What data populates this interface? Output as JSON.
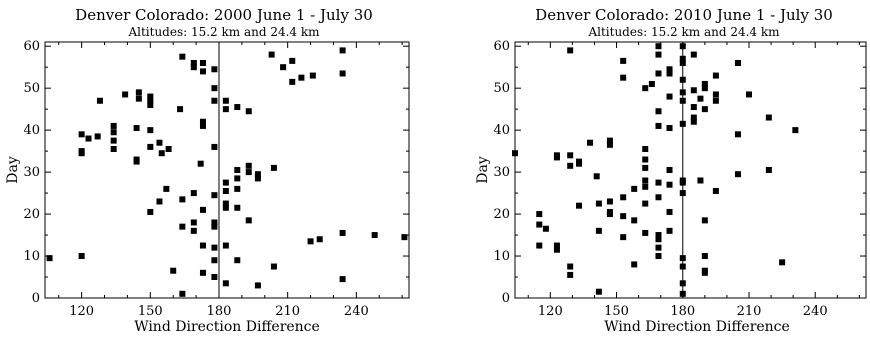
{
  "chart_data": [
    {
      "type": "scatter",
      "title": "Denver Colorado: 2000 June 1 - July 30",
      "subtitle": "Altitudes: 15.2 km and 24.4 km",
      "xlabel": "Wind Direction Difference",
      "ylabel": "Day",
      "xlim": [
        104,
        263
      ],
      "ylim": [
        0,
        61
      ],
      "xticks": [
        120,
        150,
        180,
        210,
        240
      ],
      "yticks": [
        0,
        10,
        20,
        30,
        40,
        50,
        60
      ],
      "reference_line_x": 180,
      "marker": "square",
      "marker_color": "#000000",
      "points": [
        [
          106,
          9.5
        ],
        [
          120,
          10
        ],
        [
          120,
          34.5
        ],
        [
          120,
          35
        ],
        [
          120,
          39
        ],
        [
          123,
          38
        ],
        [
          127,
          38.5
        ],
        [
          128,
          47
        ],
        [
          134,
          35.5
        ],
        [
          134,
          37.5
        ],
        [
          134,
          39.5
        ],
        [
          134,
          41
        ],
        [
          139,
          48.5
        ],
        [
          144,
          32.5
        ],
        [
          144,
          33
        ],
        [
          144,
          40.5
        ],
        [
          145,
          49
        ],
        [
          145,
          47.5
        ],
        [
          150,
          20.5
        ],
        [
          150,
          36
        ],
        [
          150,
          40
        ],
        [
          150,
          46
        ],
        [
          150,
          47
        ],
        [
          150,
          48
        ],
        [
          154,
          23
        ],
        [
          154,
          37
        ],
        [
          155,
          34.5
        ],
        [
          157,
          26
        ],
        [
          158,
          35.5
        ],
        [
          163,
          45
        ],
        [
          164,
          57.5
        ],
        [
          164,
          23.5
        ],
        [
          164,
          17
        ],
        [
          164,
          1
        ],
        [
          160,
          6.5
        ],
        [
          169,
          56
        ],
        [
          169,
          55
        ],
        [
          169,
          25
        ],
        [
          169,
          18
        ],
        [
          169,
          16
        ],
        [
          173,
          56
        ],
        [
          173,
          54
        ],
        [
          173,
          42
        ],
        [
          173,
          41
        ],
        [
          172,
          32
        ],
        [
          173,
          21
        ],
        [
          173,
          12.5
        ],
        [
          173,
          6
        ],
        [
          178,
          54.5
        ],
        [
          178,
          50
        ],
        [
          178,
          47
        ],
        [
          178,
          36
        ],
        [
          178,
          24.5
        ],
        [
          178,
          18
        ],
        [
          178,
          17
        ],
        [
          178,
          12
        ],
        [
          178,
          9
        ],
        [
          178,
          5
        ],
        [
          183,
          47
        ],
        [
          183,
          45
        ],
        [
          183,
          27.5
        ],
        [
          183,
          25.5
        ],
        [
          183,
          22.5
        ],
        [
          183,
          21.5
        ],
        [
          183,
          12.5
        ],
        [
          183,
          3.5
        ],
        [
          188,
          45.5
        ],
        [
          188,
          30.5
        ],
        [
          188,
          28.5
        ],
        [
          188,
          26
        ],
        [
          188,
          21.5
        ],
        [
          188,
          9
        ],
        [
          193,
          44.5
        ],
        [
          193,
          31.5
        ],
        [
          193,
          30
        ],
        [
          193,
          18.5
        ],
        [
          197,
          29.5
        ],
        [
          197,
          28.5
        ],
        [
          197,
          3
        ],
        [
          203,
          58
        ],
        [
          204,
          31
        ],
        [
          204,
          7.5
        ],
        [
          208,
          55
        ],
        [
          212,
          56.5
        ],
        [
          212,
          51.5
        ],
        [
          216,
          52.5
        ],
        [
          220,
          13.5
        ],
        [
          221,
          53
        ],
        [
          224,
          14
        ],
        [
          234,
          59
        ],
        [
          234,
          53.5
        ],
        [
          234,
          15.5
        ],
        [
          234,
          4.5
        ],
        [
          248,
          15
        ],
        [
          261,
          14.5
        ]
      ]
    },
    {
      "type": "scatter",
      "title": "Denver Colorado: 2010 June 1 - July 30",
      "subtitle": "Altitudes: 15.2 km and 24.4 km",
      "xlabel": "Wind Direction Difference",
      "ylabel": "Day",
      "xlim": [
        104,
        263
      ],
      "ylim": [
        0,
        61
      ],
      "xticks": [
        120,
        150,
        180,
        210,
        240
      ],
      "yticks": [
        0,
        10,
        20,
        30,
        40,
        50,
        60
      ],
      "reference_line_x": 180,
      "marker": "square",
      "marker_color": "#000000",
      "points": [
        [
          104,
          34.5
        ],
        [
          115,
          20
        ],
        [
          115,
          17.5
        ],
        [
          115,
          12.5
        ],
        [
          118,
          16.5
        ],
        [
          123,
          34
        ],
        [
          123,
          33.5
        ],
        [
          123,
          12.5
        ],
        [
          123,
          11.5
        ],
        [
          129,
          59
        ],
        [
          129,
          34
        ],
        [
          129,
          31.5
        ],
        [
          129,
          7.5
        ],
        [
          129,
          5.5
        ],
        [
          133,
          32.5
        ],
        [
          133,
          32
        ],
        [
          133,
          22
        ],
        [
          138,
          37
        ],
        [
          141,
          29
        ],
        [
          142,
          22.5
        ],
        [
          142,
          16
        ],
        [
          142,
          1.5
        ],
        [
          147,
          37.5
        ],
        [
          147,
          36.5
        ],
        [
          147,
          23
        ],
        [
          147,
          20.5
        ],
        [
          147,
          20
        ],
        [
          153,
          56.5
        ],
        [
          153,
          52.5
        ],
        [
          153,
          24
        ],
        [
          153,
          19.5
        ],
        [
          153,
          14.5
        ],
        [
          158,
          26
        ],
        [
          158,
          18.5
        ],
        [
          158,
          8
        ],
        [
          163,
          50
        ],
        [
          163,
          35.5
        ],
        [
          163,
          33
        ],
        [
          163,
          31
        ],
        [
          163,
          28
        ],
        [
          163,
          26.5
        ],
        [
          163,
          22.5
        ],
        [
          163,
          15.5
        ],
        [
          166,
          51
        ],
        [
          169,
          60
        ],
        [
          169,
          58
        ],
        [
          169,
          53.5
        ],
        [
          169,
          44.5
        ],
        [
          169,
          41
        ],
        [
          169,
          27.5
        ],
        [
          169,
          24
        ],
        [
          169,
          15
        ],
        [
          169,
          14
        ],
        [
          169,
          12
        ],
        [
          169,
          10
        ],
        [
          174,
          54.5
        ],
        [
          174,
          53.5
        ],
        [
          174,
          48
        ],
        [
          174,
          40.5
        ],
        [
          174,
          30.5
        ],
        [
          174,
          27
        ],
        [
          174,
          20.5
        ],
        [
          174,
          16
        ],
        [
          180,
          60
        ],
        [
          180,
          57
        ],
        [
          180,
          56
        ],
        [
          180,
          52
        ],
        [
          180,
          49
        ],
        [
          180,
          47
        ],
        [
          180,
          41.5
        ],
        [
          180,
          28
        ],
        [
          180,
          27.5
        ],
        [
          180,
          25
        ],
        [
          180,
          9.5
        ],
        [
          180,
          7.5
        ],
        [
          180,
          3.5
        ],
        [
          180,
          1
        ],
        [
          185,
          58
        ],
        [
          185,
          49.5
        ],
        [
          185,
          45.5
        ],
        [
          185,
          43
        ],
        [
          185,
          42
        ],
        [
          188,
          47.5
        ],
        [
          188,
          28
        ],
        [
          190,
          51
        ],
        [
          190,
          50
        ],
        [
          190,
          45
        ],
        [
          190,
          18.5
        ],
        [
          190,
          10
        ],
        [
          190,
          6.5
        ],
        [
          190,
          6
        ],
        [
          195,
          53
        ],
        [
          195,
          47
        ],
        [
          195,
          25.5
        ],
        [
          195,
          48.5
        ],
        [
          205,
          56
        ],
        [
          205,
          39
        ],
        [
          205,
          29.5
        ],
        [
          210,
          48.5
        ],
        [
          219,
          43
        ],
        [
          219,
          30.5
        ],
        [
          225,
          8.5
        ],
        [
          231,
          40
        ]
      ]
    }
  ]
}
